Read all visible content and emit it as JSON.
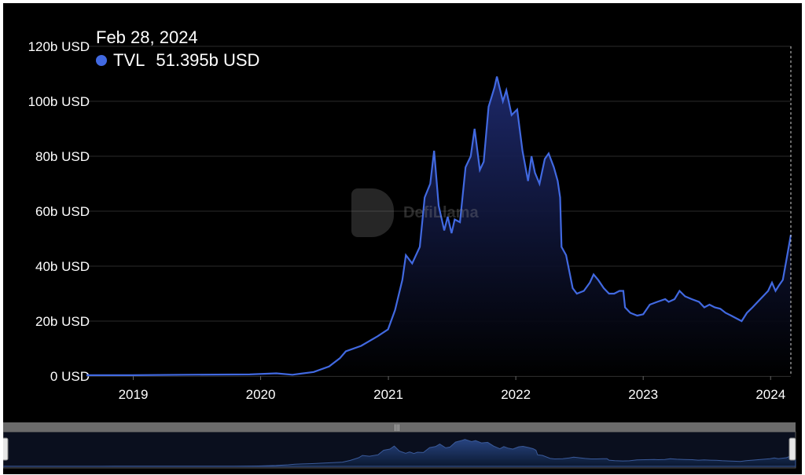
{
  "tooltip": {
    "date": "Feb 28, 2024",
    "series_name": "TVL",
    "value": "51.395b USD"
  },
  "watermark": {
    "text": "DefiLlama"
  },
  "colors": {
    "line": "#4169e1",
    "background": "#000000",
    "fill_top": "#1e2a6e",
    "fill_bottom": "#000000"
  },
  "chart_data": {
    "type": "area",
    "title": "",
    "xlabel": "",
    "ylabel": "",
    "y_ticks": [
      "0 USD",
      "20b USD",
      "40b USD",
      "60b USD",
      "80b USD",
      "100b USD",
      "120b USD"
    ],
    "y_tick_values": [
      0,
      20,
      40,
      60,
      80,
      100,
      120
    ],
    "x_ticks": [
      "2019",
      "2020",
      "2021",
      "2022",
      "2023",
      "2024"
    ],
    "x_tick_values": [
      "2019-01-01",
      "2020-01-01",
      "2021-01-01",
      "2022-01-01",
      "2023-01-01",
      "2024-01-01"
    ],
    "xlim": [
      "2018-08-20",
      "2024-02-28"
    ],
    "ylim": [
      0,
      120
    ],
    "grid": true,
    "series": [
      {
        "name": "TVL",
        "unit": "b USD",
        "points": [
          [
            "2018-08-20",
            0.3
          ],
          [
            "2019-01-01",
            0.3
          ],
          [
            "2019-06-01",
            0.5
          ],
          [
            "2019-12-01",
            0.6
          ],
          [
            "2020-02-15",
            1.0
          ],
          [
            "2020-04-01",
            0.5
          ],
          [
            "2020-06-01",
            1.5
          ],
          [
            "2020-07-15",
            3.5
          ],
          [
            "2020-08-15",
            6.5
          ],
          [
            "2020-09-01",
            9.0
          ],
          [
            "2020-10-15",
            11.0
          ],
          [
            "2020-12-01",
            14.5
          ],
          [
            "2020-12-31",
            17.0
          ],
          [
            "2021-01-20",
            24.0
          ],
          [
            "2021-02-10",
            35.0
          ],
          [
            "2021-02-20",
            44.0
          ],
          [
            "2021-03-10",
            41.0
          ],
          [
            "2021-04-01",
            47.0
          ],
          [
            "2021-04-15",
            65.0
          ],
          [
            "2021-05-01",
            70.0
          ],
          [
            "2021-05-12",
            82.0
          ],
          [
            "2021-05-25",
            62.0
          ],
          [
            "2021-06-10",
            53.0
          ],
          [
            "2021-06-20",
            58.0
          ],
          [
            "2021-07-01",
            52.0
          ],
          [
            "2021-07-10",
            57.0
          ],
          [
            "2021-07-25",
            56.0
          ],
          [
            "2021-08-10",
            76.0
          ],
          [
            "2021-08-25",
            80.0
          ],
          [
            "2021-09-05",
            90.0
          ],
          [
            "2021-09-20",
            75.0
          ],
          [
            "2021-10-01",
            78.0
          ],
          [
            "2021-10-15",
            98.0
          ],
          [
            "2021-11-01",
            105.0
          ],
          [
            "2021-11-08",
            109.0
          ],
          [
            "2021-11-25",
            100.0
          ],
          [
            "2021-12-05",
            104.0
          ],
          [
            "2021-12-20",
            95.0
          ],
          [
            "2022-01-05",
            97.0
          ],
          [
            "2022-01-20",
            82.0
          ],
          [
            "2022-02-05",
            71.0
          ],
          [
            "2022-02-15",
            80.0
          ],
          [
            "2022-02-25",
            74.0
          ],
          [
            "2022-03-10",
            70.0
          ],
          [
            "2022-03-25",
            79.0
          ],
          [
            "2022-04-05",
            81.0
          ],
          [
            "2022-04-20",
            76.0
          ],
          [
            "2022-05-01",
            71.0
          ],
          [
            "2022-05-08",
            65.0
          ],
          [
            "2022-05-12",
            47.0
          ],
          [
            "2022-05-25",
            44.0
          ],
          [
            "2022-06-13",
            32.0
          ],
          [
            "2022-06-25",
            30.0
          ],
          [
            "2022-07-15",
            31.0
          ],
          [
            "2022-08-01",
            34.0
          ],
          [
            "2022-08-12",
            37.0
          ],
          [
            "2022-08-25",
            35.0
          ],
          [
            "2022-09-10",
            32.0
          ],
          [
            "2022-09-25",
            30.0
          ],
          [
            "2022-10-10",
            30.0
          ],
          [
            "2022-10-25",
            31.0
          ],
          [
            "2022-11-05",
            31.0
          ],
          [
            "2022-11-10",
            25.0
          ],
          [
            "2022-11-25",
            23.0
          ],
          [
            "2022-12-15",
            22.0
          ],
          [
            "2023-01-01",
            22.5
          ],
          [
            "2023-01-20",
            26.0
          ],
          [
            "2023-02-10",
            27.0
          ],
          [
            "2023-03-05",
            28.0
          ],
          [
            "2023-03-15",
            27.0
          ],
          [
            "2023-04-01",
            28.0
          ],
          [
            "2023-04-15",
            31.0
          ],
          [
            "2023-05-01",
            29.0
          ],
          [
            "2023-05-20",
            28.0
          ],
          [
            "2023-06-10",
            27.0
          ],
          [
            "2023-06-25",
            25.0
          ],
          [
            "2023-07-10",
            26.0
          ],
          [
            "2023-07-25",
            25.0
          ],
          [
            "2023-08-10",
            24.5
          ],
          [
            "2023-08-25",
            23.0
          ],
          [
            "2023-09-10",
            22.0
          ],
          [
            "2023-09-25",
            21.0
          ],
          [
            "2023-10-10",
            20.0
          ],
          [
            "2023-10-25",
            23.0
          ],
          [
            "2023-11-10",
            25.0
          ],
          [
            "2023-11-25",
            27.0
          ],
          [
            "2023-12-10",
            29.0
          ],
          [
            "2023-12-25",
            31.0
          ],
          [
            "2024-01-05",
            34.0
          ],
          [
            "2024-01-15",
            31.0
          ],
          [
            "2024-01-25",
            33.0
          ],
          [
            "2024-02-05",
            35.0
          ],
          [
            "2024-02-15",
            42.0
          ],
          [
            "2024-02-28",
            51.4
          ]
        ]
      }
    ]
  }
}
